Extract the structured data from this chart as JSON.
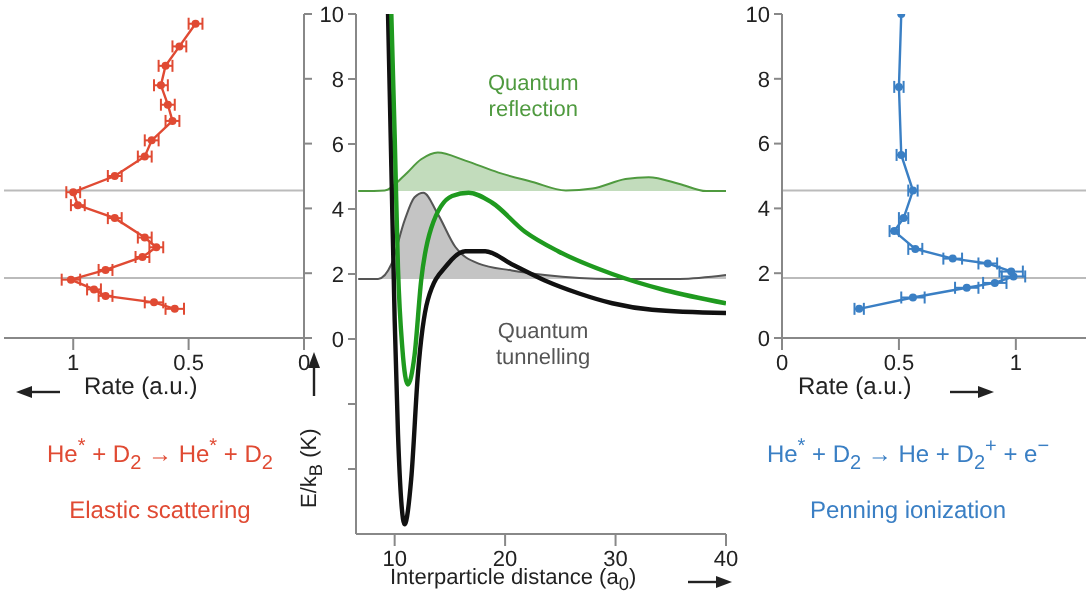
{
  "chart_data": [
    {
      "type": "line",
      "xlabel": "Rate (a.u.)",
      "annotations": [
        "He$^{*}$ + D$_{2}$ → He$^{*}$ + D$_{2}$",
        "Elastic scattering"
      ],
      "color": "#e04a33",
      "marker": "circle",
      "tick_labels": "x",
      "x": [
        0.47,
        0.54,
        0.6,
        0.62,
        0.59,
        0.57,
        0.66,
        0.69,
        0.82,
        1.0,
        0.98,
        0.82,
        0.69,
        0.64,
        0.7,
        0.86,
        1.01,
        0.91,
        0.86,
        0.65,
        0.56
      ],
      "values": [
        9.7,
        9.0,
        8.4,
        7.8,
        7.2,
        6.7,
        6.1,
        5.6,
        5.0,
        4.5,
        4.1,
        3.7,
        3.1,
        2.8,
        2.5,
        2.1,
        1.8,
        1.5,
        1.3,
        1.1,
        0.9
      ],
      "xerrors": [
        0.03,
        0.03,
        0.03,
        0.03,
        0.03,
        0.03,
        0.03,
        0.03,
        0.03,
        0.03,
        0.03,
        0.03,
        0.03,
        0.03,
        0.03,
        0.03,
        0.04,
        0.03,
        0.03,
        0.04,
        0.04
      ],
      "xlim": [
        1.3,
        0
      ],
      "xticks": [
        1,
        0.5,
        0
      ],
      "ylim": [
        0,
        10
      ],
      "yticks": [
        0,
        2,
        4,
        6,
        8,
        10
      ],
      "ref_lines": [
        {
          "axis": "y",
          "value": 4.55,
          "color": "#bbbbbb"
        },
        {
          "axis": "y",
          "value": 1.85,
          "color": "#bbbbbb"
        }
      ]
    },
    {
      "type": "line",
      "xlabel": "Interparticle distance (a$_{0}$)",
      "ylabel": "E/k$_{B}$ (K)",
      "annotations": [
        "Quantum reflection",
        "Quantum tunnelling"
      ],
      "xlim": [
        6.5,
        40
      ],
      "xticks": [
        10,
        20,
        30,
        40
      ],
      "ylim": [
        -6,
        10
      ],
      "yticks": [
        {
          "value": -4,
          "label": null
        },
        {
          "value": -2,
          "label": null
        },
        0,
        2,
        4,
        6,
        8,
        10
      ],
      "series": [
        {
          "type": "area",
          "color": "#4f9a3f",
          "x": [
            6.7,
            9.1,
            10.9,
            12.4,
            13.9,
            16.4,
            19.4,
            22.4,
            25.5,
            27.9,
            30.9,
            33.0,
            35.8,
            38.2,
            40
          ],
          "values": [
            4.55,
            4.57,
            5.04,
            5.53,
            5.74,
            5.49,
            5.12,
            4.84,
            4.57,
            4.63,
            4.92,
            4.98,
            4.77,
            4.55,
            4.55
          ]
        },
        {
          "type": "area",
          "color": "#555555",
          "x": [
            6.7,
            8.5,
            9.7,
            10.9,
            11.8,
            12.6,
            13.9,
            15.5,
            17.6,
            20.6,
            23.6,
            29.7,
            35.8,
            40
          ],
          "values": [
            1.85,
            1.85,
            2.3,
            3.65,
            4.36,
            4.5,
            3.85,
            2.83,
            2.32,
            2.11,
            1.97,
            1.85,
            1.85,
            1.97
          ]
        },
        {
          "color": "#111111",
          "x": [
            9.4,
            9.7,
            10.0,
            10.3,
            10.9,
            11.5,
            12.1,
            13.0,
            14.8,
            16.4,
            18.2,
            20.6,
            23.6,
            26.7,
            29.7,
            33.3,
            40
          ],
          "values": [
            10,
            5.3,
            0.6,
            -2.9,
            -5.7,
            -4.3,
            -1.1,
            1.2,
            2.3,
            2.7,
            2.7,
            2.3,
            1.8,
            1.4,
            1.1,
            0.9,
            0.8
          ]
        },
        {
          "color": "#1f9a1f",
          "x": [
            9.7,
            10.0,
            10.3,
            10.7,
            11.2,
            11.8,
            12.4,
            13.3,
            15.2,
            16.7,
            18.8,
            21.8,
            24.8,
            29.7,
            34.5,
            40
          ],
          "values": [
            10,
            6.3,
            2.2,
            -0.3,
            -1.4,
            -0.5,
            1.8,
            3.4,
            4.4,
            4.5,
            4.2,
            3.3,
            2.7,
            2.0,
            1.5,
            1.1
          ]
        }
      ]
    },
    {
      "type": "line",
      "xlabel": "Rate (a.u.)",
      "annotations": [
        "He$^{*}$ + D$_{2}$ → He + D$_{2}$$^{+}$ + e$^{−}$",
        "Penning ionization"
      ],
      "color": "#3a7fc4",
      "marker": "circle",
      "x": [
        0.33,
        0.56,
        0.79,
        0.91,
        0.99,
        0.98,
        0.88,
        0.73,
        0.57,
        0.48,
        0.52,
        0.56,
        0.51,
        0.5,
        0.51
      ],
      "values": [
        0.9,
        1.25,
        1.55,
        1.7,
        1.9,
        2.05,
        2.3,
        2.45,
        2.75,
        3.3,
        3.7,
        4.55,
        5.65,
        7.75,
        10
      ],
      "xerrors": [
        0.02,
        0.05,
        0.05,
        0.05,
        0.05,
        0.05,
        0.04,
        0.04,
        0.03,
        0.02,
        0.02,
        0.02,
        0.02,
        0.02,
        null
      ],
      "xlim": [
        0,
        1.3
      ],
      "xticks": [
        0,
        0.5,
        1
      ],
      "ylim": [
        0,
        10
      ],
      "yticks": [
        0,
        2,
        4,
        6,
        8,
        10
      ],
      "ref_lines": [
        {
          "axis": "y",
          "value": 4.55,
          "color": "#bbbbbb"
        },
        {
          "axis": "y",
          "value": 1.85,
          "color": "#bbbbbb"
        }
      ]
    }
  ]
}
